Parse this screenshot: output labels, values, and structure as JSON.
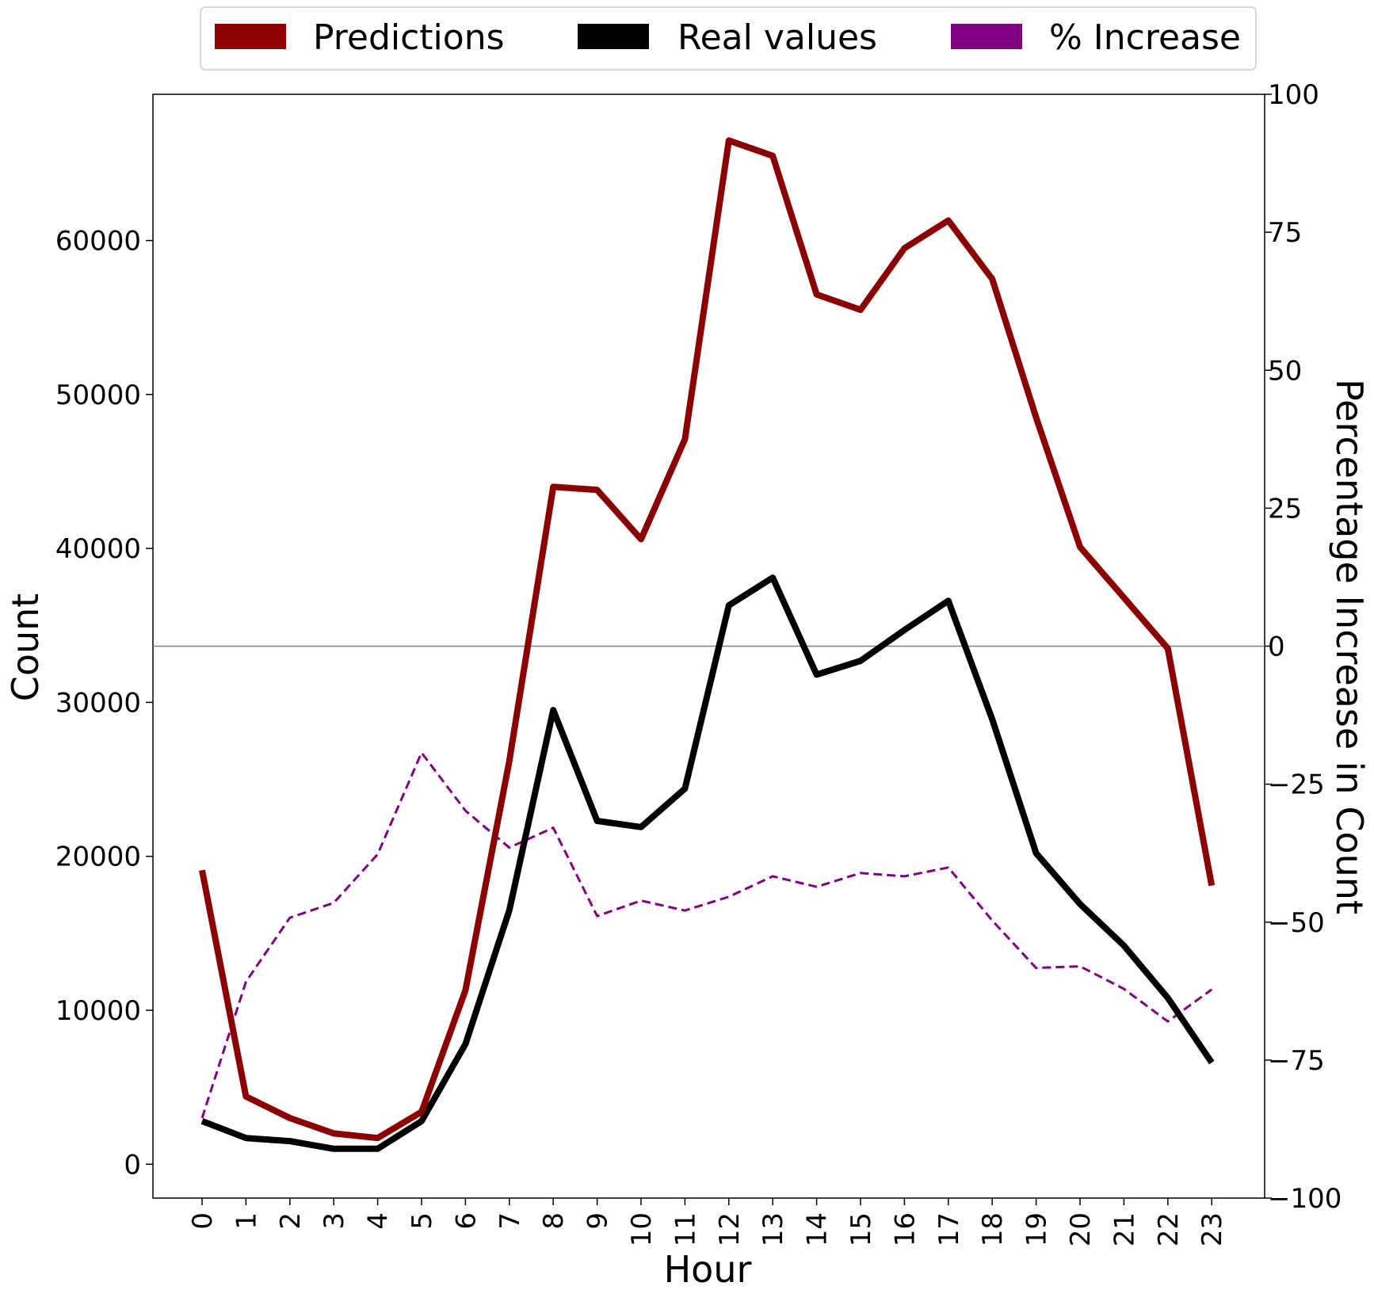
{
  "chart_data": {
    "type": "line",
    "xlabel": "Hour",
    "ylabel": "Count",
    "y2label": "Percentage Increase in Count",
    "x": [
      0,
      1,
      2,
      3,
      4,
      5,
      6,
      7,
      8,
      9,
      10,
      11,
      12,
      13,
      14,
      15,
      16,
      17,
      18,
      19,
      20,
      21,
      22,
      23
    ],
    "xticks": [
      "0",
      "1",
      "2",
      "3",
      "4",
      "5",
      "6",
      "7",
      "8",
      "9",
      "10",
      "11",
      "12",
      "13",
      "14",
      "15",
      "16",
      "17",
      "18",
      "19",
      "20",
      "21",
      "22",
      "23"
    ],
    "ylim": [
      -2200,
      69500
    ],
    "yticks": [
      0,
      10000,
      20000,
      30000,
      40000,
      50000,
      60000
    ],
    "ytick_labels": [
      "0",
      "10000",
      "20000",
      "30000",
      "40000",
      "50000",
      "60000"
    ],
    "y2lim": [
      -100,
      100
    ],
    "y2ticks": [
      -100,
      -75,
      -50,
      -25,
      0,
      25,
      50,
      75,
      100
    ],
    "y2tick_labels": [
      "−100",
      "−75",
      "−50",
      "−25",
      "0",
      "25",
      "50",
      "75",
      "100"
    ],
    "zero_line": 0,
    "legend_position": "top-center",
    "series": [
      {
        "name": "Predictions",
        "axis": "left",
        "color": "#8b0000",
        "style": "solid",
        "values": [
          19100,
          4400,
          3000,
          2000,
          1700,
          3400,
          11300,
          26200,
          44000,
          43800,
          40600,
          47100,
          66500,
          65500,
          56500,
          55500,
          59500,
          61300,
          57500,
          48500,
          40100,
          36800,
          33500,
          18100
        ]
      },
      {
        "name": "Real values",
        "axis": "left",
        "color": "#000000",
        "style": "solid",
        "values": [
          2800,
          1700,
          1500,
          1000,
          1000,
          2800,
          7800,
          16500,
          29500,
          22300,
          21900,
          24400,
          36300,
          38100,
          31800,
          32700,
          34700,
          36600,
          28900,
          20200,
          16900,
          14200,
          10800,
          6600
        ]
      },
      {
        "name": "% Increase",
        "axis": "right",
        "color": "#800080",
        "style": "dashed",
        "values": [
          -85.5,
          -60.8,
          -49.2,
          -46.5,
          -37.7,
          -19.3,
          -29.8,
          -36.5,
          -32.9,
          -48.9,
          -46.1,
          -47.9,
          -45.4,
          -41.7,
          -43.6,
          -41.1,
          -41.7,
          -40.1,
          -49.7,
          -58.3,
          -58.0,
          -62.1,
          -68.0,
          -62.2
        ]
      }
    ]
  }
}
